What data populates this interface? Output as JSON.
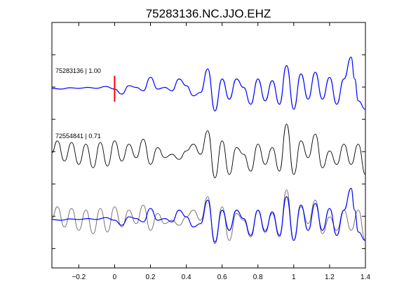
{
  "chart_data": {
    "type": "line",
    "title": "75283136.NC.JJO.EHZ",
    "xlabel": "",
    "ylabel": "",
    "xlim": [
      -0.35,
      1.4
    ],
    "x_ticks": [
      -0.2,
      0,
      0.2,
      0.4,
      0.6,
      0.8,
      1,
      1.2,
      1.4
    ],
    "x_tick_labels": [
      "−0.2",
      "0",
      "0.2",
      "0.4",
      "0.6",
      "0.8",
      "1",
      "1.2",
      "1.4"
    ],
    "grid": false,
    "pick_time": 0,
    "colors": {
      "master": "#0000ff",
      "correlated": "#000000",
      "overlay": "#666666",
      "pick": "#ff0000"
    },
    "traces": [
      {
        "label": "75283136 | 1.00",
        "color": "#0000ff",
        "x": [
          -0.35,
          -0.3,
          -0.25,
          -0.2,
          -0.15,
          -0.1,
          -0.05,
          0,
          0.04,
          0.08,
          0.12,
          0.16,
          0.2,
          0.24,
          0.28,
          0.32,
          0.36,
          0.4,
          0.44,
          0.48,
          0.52,
          0.56,
          0.6,
          0.64,
          0.68,
          0.72,
          0.76,
          0.8,
          0.84,
          0.88,
          0.92,
          0.96,
          1.0,
          1.04,
          1.08,
          1.12,
          1.16,
          1.2,
          1.24,
          1.28,
          1.32,
          1.34,
          1.36,
          1.4
        ],
        "y": [
          0.02,
          0.0,
          0.04,
          0.02,
          0.05,
          0.02,
          0.08,
          0.0,
          -0.15,
          0.1,
          0.05,
          -0.05,
          0.35,
          0.0,
          0.05,
          -0.05,
          0.3,
          0.1,
          -0.2,
          -0.1,
          0.6,
          -0.65,
          0.3,
          -0.3,
          0.3,
          0.05,
          -0.45,
          0.3,
          -0.35,
          0.25,
          -0.45,
          0.7,
          -0.6,
          0.45,
          -0.3,
          0.5,
          -0.3,
          0.35,
          -0.45,
          0.3,
          0.95,
          0.3,
          -0.35,
          -0.6
        ]
      },
      {
        "label": "72554841 | 0.71",
        "color": "#000000",
        "x": [
          -0.35,
          -0.32,
          -0.28,
          -0.24,
          -0.2,
          -0.16,
          -0.12,
          -0.08,
          -0.04,
          0,
          0.04,
          0.08,
          0.12,
          0.16,
          0.2,
          0.24,
          0.28,
          0.32,
          0.36,
          0.4,
          0.44,
          0.48,
          0.52,
          0.56,
          0.6,
          0.64,
          0.68,
          0.72,
          0.76,
          0.8,
          0.84,
          0.88,
          0.92,
          0.96,
          1.0,
          1.04,
          1.08,
          1.12,
          1.16,
          1.2,
          1.24,
          1.28,
          1.32,
          1.36,
          1.4
        ],
        "y": [
          0.05,
          0.4,
          -0.2,
          0.35,
          -0.3,
          0.3,
          -0.4,
          0.35,
          -0.35,
          0.4,
          -0.2,
          0.3,
          -0.1,
          0.45,
          -0.3,
          0.2,
          -0.1,
          0.0,
          -0.15,
          0.1,
          0.3,
          0.0,
          0.7,
          -0.7,
          0.4,
          -0.6,
          0.2,
          0.0,
          -0.5,
          0.3,
          -0.3,
          0.2,
          -0.5,
          0.9,
          -0.6,
          0.4,
          -0.1,
          0.6,
          -0.4,
          0.1,
          -0.3,
          0.3,
          -0.3,
          0.3,
          -0.6
        ]
      }
    ]
  }
}
